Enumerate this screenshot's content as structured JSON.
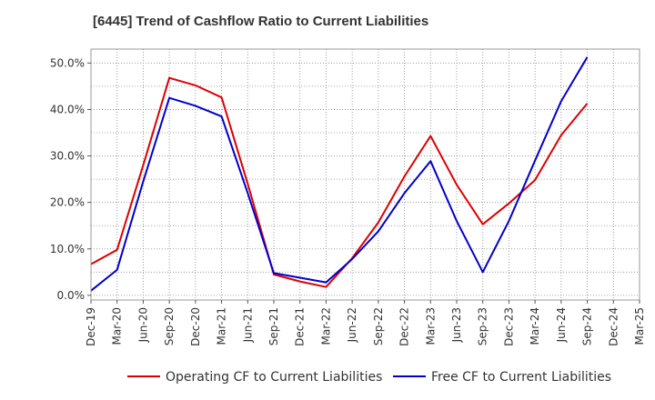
{
  "chart_data": {
    "type": "line",
    "title": "[6445]  Trend of Cashflow Ratio to Current Liabilities",
    "xlabel": "",
    "ylabel": "",
    "categories": [
      "Dec-19",
      "Mar-20",
      "Jun-20",
      "Sep-20",
      "Dec-20",
      "Mar-21",
      "Jun-21",
      "Sep-21",
      "Dec-21",
      "Mar-22",
      "Jun-22",
      "Sep-22",
      "Dec-22",
      "Mar-23",
      "Jun-23",
      "Sep-23",
      "Dec-23",
      "Mar-24",
      "Jun-24",
      "Sep-24",
      "Dec-24",
      "Mar-25"
    ],
    "ylim": [
      -1.0,
      53.0
    ],
    "yticks": [
      0,
      10,
      20,
      30,
      40,
      50
    ],
    "ytick_labels": [
      "0.0%",
      "10.0%",
      "20.0%",
      "30.0%",
      "40.0%",
      "50.0%"
    ],
    "grid": true,
    "legend_position": "bottom",
    "series": [
      {
        "name": "Operating CF to Current Liabilities",
        "color": "#dd0000",
        "values": [
          6.7,
          9.8,
          28.0,
          46.8,
          45.2,
          42.6,
          24.0,
          4.5,
          3.0,
          1.8,
          8.0,
          15.7,
          25.6,
          34.3,
          23.8,
          15.3,
          19.8,
          24.8,
          34.5,
          41.3,
          null,
          null
        ]
      },
      {
        "name": "Free CF to Current Liabilities",
        "color": "#0000cc",
        "values": [
          1.0,
          5.5,
          24.5,
          42.5,
          40.8,
          38.5,
          22.0,
          4.8,
          3.8,
          2.8,
          7.8,
          13.8,
          22.0,
          28.9,
          16.0,
          5.0,
          16.0,
          29.0,
          41.8,
          51.3,
          null,
          null
        ]
      }
    ]
  }
}
